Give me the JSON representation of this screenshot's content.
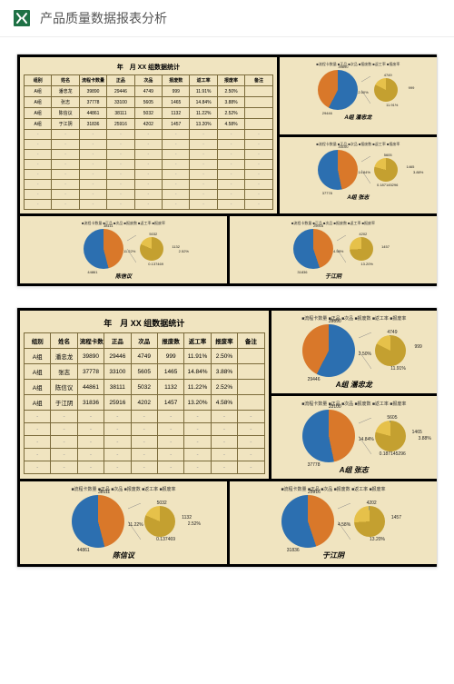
{
  "header": {
    "title": "产品质量数据报表分析",
    "icon_name": "excel"
  },
  "table": {
    "title": "年　月 XX 组数据统计",
    "columns": [
      "组别",
      "姓名",
      "流程卡数量",
      "正品",
      "次品",
      "报废数",
      "返工率",
      "报废率",
      "备注"
    ],
    "rows": [
      [
        "A组",
        "潘忠龙",
        "39890",
        "29446",
        "4749",
        "999",
        "11.91%",
        "2.50%",
        ""
      ],
      [
        "A组",
        "张志",
        "37778",
        "33100",
        "5605",
        "1465",
        "14.84%",
        "3.88%",
        ""
      ],
      [
        "A组",
        "陈信议",
        "44861",
        "38111",
        "5032",
        "1132",
        "11.22%",
        "2.52%",
        ""
      ],
      [
        "A组",
        "于江阴",
        "31836",
        "25916",
        "4202",
        "1457",
        "13.20%",
        "4.58%",
        ""
      ]
    ],
    "blank_rows": 8
  },
  "palette": {
    "orange": "#d9782a",
    "blue": "#2c6fb0",
    "yellow": "#e6c14a",
    "green": "#6fa23e",
    "gold": "#c4a030",
    "cream": "#f0e4c0"
  },
  "charts": [
    {
      "id": "panzhonglong",
      "legend": "■流程卡数量 ■正品 ■次品 ■报废数 ■返工率 ■报废率",
      "name": "A组 潘忠龙",
      "big_pie": [
        {
          "value": 39890,
          "color": "#2c6fb0"
        },
        {
          "value": 29446,
          "color": "#d9782a"
        }
      ],
      "big_labels": [
        "39890",
        "29446"
      ],
      "sub_pie": [
        {
          "value": 4749,
          "color": "#c4a030"
        },
        {
          "value": 999,
          "color": "#e6c14a"
        },
        {
          "value": 11.91,
          "color": "#2c6fb0"
        },
        {
          "value": 2.5,
          "color": "#6fa23e"
        }
      ],
      "sub_labels": [
        "4749",
        "999",
        "11.91%",
        "2.50%"
      ]
    },
    {
      "id": "zhangzhi",
      "legend": "■流程卡数量 ■正品 ■次品 ■报废数 ■返工率 ■报废率",
      "name": "A组 张志",
      "big_pie": [
        {
          "value": 33100,
          "color": "#d9782a"
        },
        {
          "value": 37778,
          "color": "#2c6fb0"
        }
      ],
      "big_labels": [
        "33100",
        "37778"
      ],
      "sub_pie": [
        {
          "value": 5605,
          "color": "#c4a030"
        },
        {
          "value": 1465,
          "color": "#e6c14a"
        },
        {
          "value": 14.84,
          "color": "#2c6fb0"
        },
        {
          "value": 3.88,
          "color": "#6fa23e"
        }
      ],
      "sub_labels": [
        "5605",
        "1465",
        "0.187145296",
        "14.84%",
        "3.88%"
      ]
    },
    {
      "id": "chenxinyi",
      "legend": "■流程卡数量 ■正品 ■次品 ■报废数 ■返工率 ■报废率",
      "name": "陈信议",
      "big_pie": [
        {
          "value": 38111,
          "color": "#d9782a"
        },
        {
          "value": 44861,
          "color": "#2c6fb0"
        }
      ],
      "big_labels": [
        "38111",
        "44861"
      ],
      "sub_pie": [
        {
          "value": 5032,
          "color": "#c4a030"
        },
        {
          "value": 1132,
          "color": "#e6c14a"
        },
        {
          "value": 11.22,
          "color": "#2c6fb0"
        },
        {
          "value": 2.52,
          "color": "#6fa23e"
        }
      ],
      "sub_labels": [
        "5032",
        "1132",
        "0.137469",
        "11.22%",
        "2.52%"
      ]
    },
    {
      "id": "yujiangyin",
      "legend": "■流程卡数量 ■正品 ■次品 ■报废数 ■返工率 ■报废率",
      "name": "于江阴",
      "big_pie": [
        {
          "value": 25916,
          "color": "#d9782a"
        },
        {
          "value": 31836,
          "color": "#2c6fb0"
        }
      ],
      "big_labels": [
        "25916",
        "31836"
      ],
      "sub_pie": [
        {
          "value": 4202,
          "color": "#c4a030"
        },
        {
          "value": 1457,
          "color": "#e6c14a"
        },
        {
          "value": 13.2,
          "color": "#2c6fb0"
        },
        {
          "value": 4.58,
          "color": "#6fa23e"
        }
      ],
      "sub_labels": [
        "4202",
        "1457",
        "13.20%",
        "4.58%"
      ]
    }
  ]
}
